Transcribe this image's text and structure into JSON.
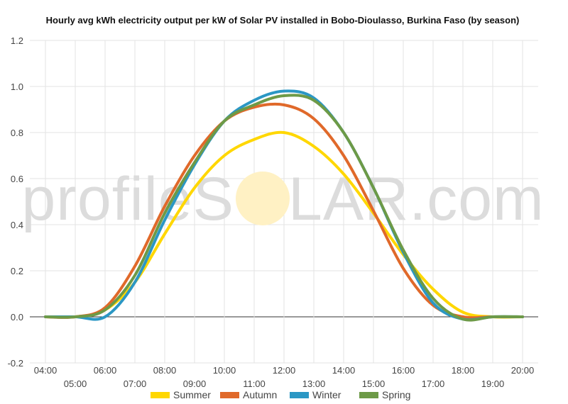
{
  "chart_data": {
    "type": "line",
    "title": "Hourly avg kWh electricity output per kW of Solar PV installed in Bobo-Dioulasso, Burkina Faso (by season)",
    "xlabel": "",
    "ylabel": "",
    "x": [
      "04:00",
      "05:00",
      "06:00",
      "07:00",
      "08:00",
      "09:00",
      "10:00",
      "11:00",
      "12:00",
      "13:00",
      "14:00",
      "15:00",
      "16:00",
      "17:00",
      "18:00",
      "19:00",
      "20:00"
    ],
    "ylim": [
      -0.2,
      1.2
    ],
    "yticks": [
      "-0.2",
      "0.0",
      "0.2",
      "0.4",
      "0.6",
      "0.8",
      "1.0",
      "1.2"
    ],
    "grid": true,
    "legend_position": "bottom",
    "series": [
      {
        "name": "Summer",
        "color": "#ffd700",
        "values": [
          0.0,
          0.0,
          0.03,
          0.15,
          0.36,
          0.56,
          0.7,
          0.77,
          0.8,
          0.74,
          0.62,
          0.45,
          0.27,
          0.12,
          0.02,
          0.0,
          0.0
        ]
      },
      {
        "name": "Autumn",
        "color": "#e0692a",
        "values": [
          0.0,
          0.0,
          0.04,
          0.22,
          0.48,
          0.7,
          0.85,
          0.91,
          0.92,
          0.86,
          0.7,
          0.46,
          0.21,
          0.05,
          0.0,
          0.0,
          0.0
        ]
      },
      {
        "name": "Winter",
        "color": "#2b97c4",
        "values": [
          0.0,
          0.0,
          0.0,
          0.15,
          0.42,
          0.66,
          0.85,
          0.94,
          0.98,
          0.95,
          0.8,
          0.56,
          0.28,
          0.06,
          -0.01,
          0.0,
          0.0
        ]
      },
      {
        "name": "Spring",
        "color": "#6d9a47",
        "values": [
          0.0,
          0.0,
          0.03,
          0.18,
          0.45,
          0.67,
          0.85,
          0.92,
          0.96,
          0.94,
          0.8,
          0.56,
          0.29,
          0.08,
          -0.01,
          0.0,
          0.0
        ]
      }
    ]
  },
  "watermark": {
    "text_left": "profileS",
    "text_right": "LAR.com",
    "sun_color": "#fff1c4"
  }
}
